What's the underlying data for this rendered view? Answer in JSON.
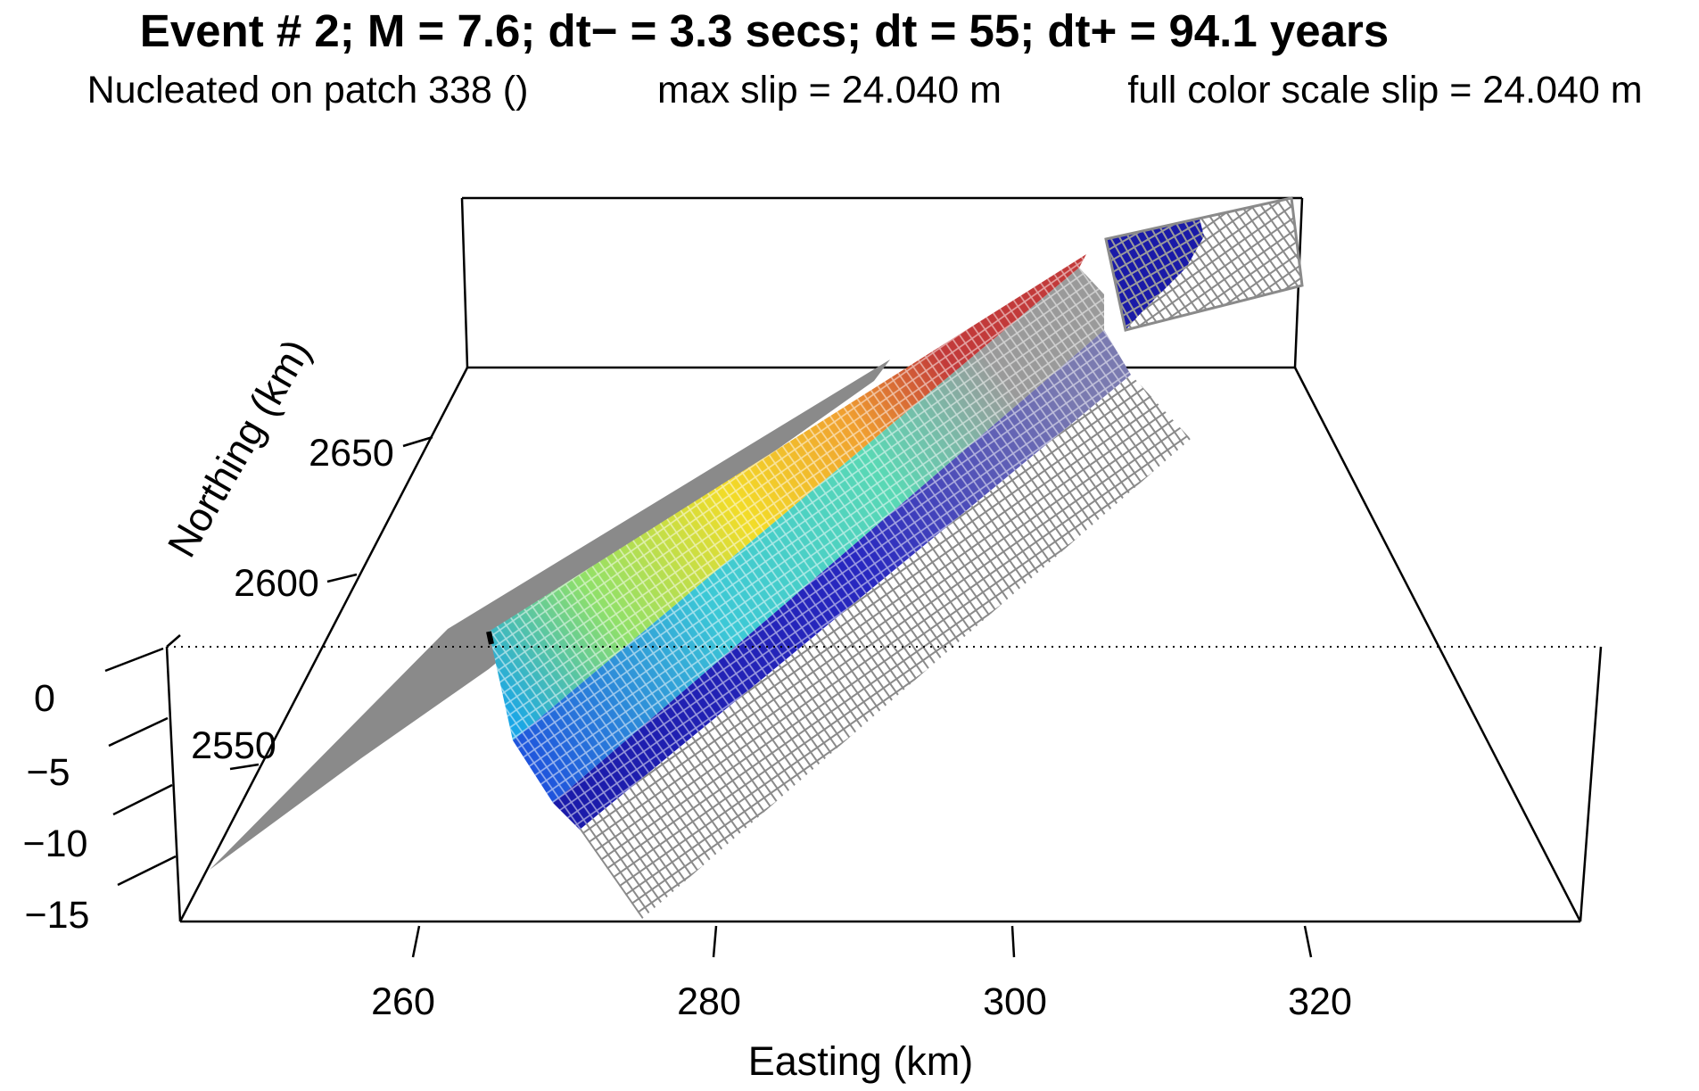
{
  "title": "Event # 2;  M = 7.6;   dt− = 3.3 secs;   dt = 55;   dt+ = 94.1 years",
  "subtitle": {
    "nucleation": "Nucleated on patch 338 ()",
    "max_slip": "max slip = 24.040 m",
    "color_scale": "full color scale slip = 24.040 m"
  },
  "axes": {
    "easting": {
      "label": "Easting (km)",
      "ticks": [
        "260",
        "280",
        "300",
        "320"
      ]
    },
    "northing": {
      "label": "Northing (km)",
      "ticks": [
        "2550",
        "2600",
        "2650"
      ]
    },
    "depth": {
      "ticks": [
        "0",
        "−5",
        "−10",
        "−15"
      ]
    }
  },
  "colors": {
    "box": "#000000",
    "unslipped_patch": "#8a8a8a",
    "patch_outline": "#9a9a9a",
    "slip_low": "#1a1aa8",
    "slip_mid": "#40e0d0",
    "slip_high": "#c83232"
  },
  "slip_color_scale": [
    "#1a1aa8",
    "#1e50dc",
    "#1fa0e6",
    "#40e0d0",
    "#9ae65a",
    "#f0e628",
    "#f0a028",
    "#c83232"
  ]
}
